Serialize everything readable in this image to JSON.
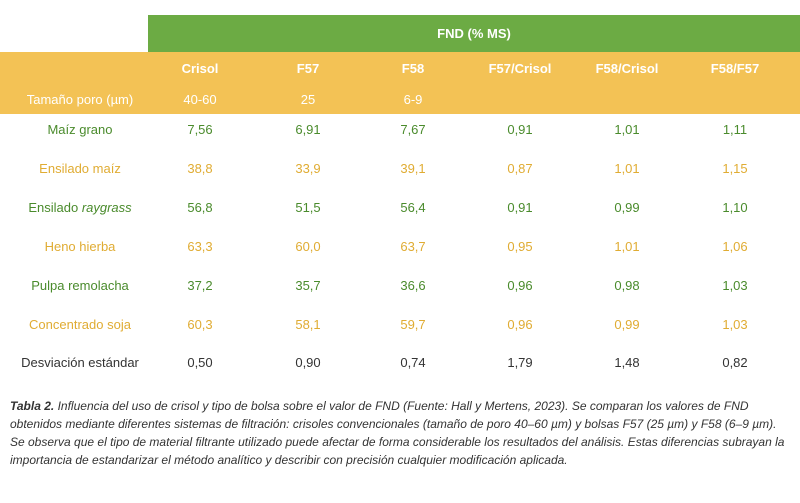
{
  "table": {
    "group_header": "FND (% MS)",
    "columns": [
      "Crisol",
      "F57",
      "F58",
      "F57/Crisol",
      "F58/Crisol",
      "F58/F57"
    ],
    "pore_label": "Tamaño poro (µm)",
    "pore_sizes": [
      "40-60",
      "25",
      "6-9"
    ],
    "rows": [
      {
        "label": "Maíz grano",
        "label_italic": "",
        "values": [
          "7,56",
          "6,91",
          "7,67",
          "0,91",
          "1,01",
          "1,11"
        ]
      },
      {
        "label": "Ensilado maíz",
        "label_italic": "",
        "values": [
          "38,8",
          "33,9",
          "39,1",
          "0,87",
          "1,01",
          "1,15"
        ]
      },
      {
        "label": "Ensilado ",
        "label_italic": "raygrass",
        "values": [
          "56,8",
          "51,5",
          "56,4",
          "0,91",
          "0,99",
          "1,10"
        ]
      },
      {
        "label": "Heno hierba",
        "label_italic": "",
        "values": [
          "63,3",
          "60,0",
          "63,7",
          "0,95",
          "1,01",
          "1,06"
        ]
      },
      {
        "label": "Pulpa remolacha",
        "label_italic": "",
        "values": [
          "37,2",
          "35,7",
          "36,6",
          "0,96",
          "0,98",
          "1,03"
        ]
      },
      {
        "label": "Concentrado soja",
        "label_italic": "",
        "values": [
          "60,3",
          "58,1",
          "59,7",
          "0,96",
          "0,99",
          "1,03"
        ]
      },
      {
        "label": "Desviación estándar",
        "label_italic": "",
        "values": [
          "0,50",
          "0,90",
          "0,74",
          "1,79",
          "1,48",
          "0,82"
        ]
      }
    ]
  },
  "caption": {
    "label": "Tabla 2.",
    "text": " Influencia del uso de crisol y tipo de bolsa sobre el valor de FND (Fuente: Hall y Mertens, 2023). Se comparan los valores de FND obtenidos mediante diferentes sistemas de filtración: crisoles convencionales (tamaño de poro 40–60 µm) y bolsas F57 (25 µm) y F58 (6–9 µm). Se observa que el tipo de material filtrante utilizado puede afectar de forma considerable los resultados del análisis. Estas diferencias subrayan la importancia de estandarizar el método analítico y describir con precisión cualquier modificación aplicada."
  },
  "colors": {
    "green_band": "#6cab44",
    "yellow_band": "#f3c255",
    "green_text": "#4a8b2c",
    "yellow_text": "#e0ac33"
  }
}
